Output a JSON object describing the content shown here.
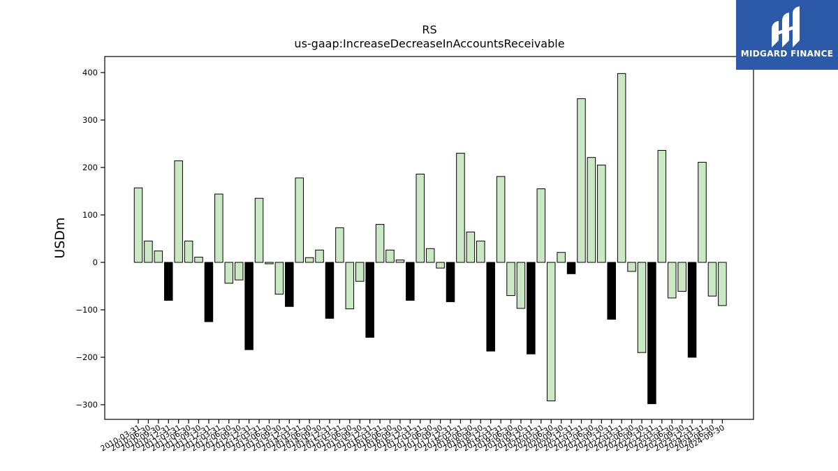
{
  "brand": {
    "name": "MIDGARD FINANCE"
  },
  "chart_data": {
    "type": "bar",
    "title": "RS",
    "subtitle": "us-gaap:IncreaseDecreaseInAccountsReceivable",
    "ylabel": "USDm",
    "xlabel": "",
    "ylim": [
      -330,
      435
    ],
    "yticks": [
      400,
      300,
      200,
      100,
      0,
      -100,
      -200,
      -300
    ],
    "ytick_labels": [
      "400",
      "300",
      "200",
      "100",
      "0",
      "−100",
      "−200",
      "−300"
    ],
    "grid": false,
    "colors": {
      "quarter": "#cbe8c4",
      "annual": "#000000",
      "edge": "#000000"
    },
    "categories": [
      "2010-03-31",
      "2010-06-30",
      "2010-09-30",
      "2010-12-31",
      "2011-03-31",
      "2011-06-30",
      "2011-09-30",
      "2011-12-31",
      "2012-03-31",
      "2012-06-30",
      "2012-09-30",
      "2012-12-31",
      "2013-03-31",
      "2013-06-30",
      "2013-09-30",
      "2013-12-31",
      "2014-03-31",
      "2014-06-30",
      "2014-09-30",
      "2014-12-31",
      "2015-03-31",
      "2015-06-30",
      "2015-09-30",
      "2015-12-31",
      "2016-03-31",
      "2016-06-30",
      "2016-09-30",
      "2016-12-31",
      "2017-03-31",
      "2017-06-30",
      "2017-09-30",
      "2017-12-31",
      "2018-03-31",
      "2018-06-30",
      "2018-09-30",
      "2018-12-31",
      "2019-03-31",
      "2019-06-30",
      "2019-09-30",
      "2019-12-31",
      "2020-03-31",
      "2020-06-30",
      "2020-09-30",
      "2020-12-31",
      "2021-03-31",
      "2021-06-30",
      "2021-09-30",
      "2021-12-31",
      "2022-03-31",
      "2022-06-30",
      "2022-09-30",
      "2022-12-31",
      "2023-03-31",
      "2023-06-30",
      "2023-09-30",
      "2023-12-31",
      "2024-03-31",
      "2024-06-30",
      "2024-09-30"
    ],
    "values": [
      157,
      45,
      24,
      -80,
      214,
      45,
      11,
      -125,
      144,
      -44,
      -37,
      -184,
      135,
      -3,
      -67,
      -93,
      178,
      10,
      26,
      -118,
      73,
      -98,
      -40,
      -158,
      80,
      26,
      5,
      -80,
      186,
      29,
      -12,
      -83,
      230,
      64,
      45,
      -187,
      181,
      -70,
      -97,
      -193,
      155,
      -292,
      21,
      -24,
      345,
      221,
      205,
      -120,
      398,
      -19,
      -190,
      -298,
      236,
      -75,
      -61,
      -200,
      211,
      -71,
      -91
    ],
    "annual": [
      false,
      false,
      false,
      true,
      false,
      false,
      false,
      true,
      false,
      false,
      false,
      true,
      false,
      false,
      false,
      true,
      false,
      false,
      false,
      true,
      false,
      false,
      false,
      true,
      false,
      false,
      false,
      true,
      false,
      false,
      false,
      true,
      false,
      false,
      false,
      true,
      false,
      false,
      false,
      true,
      false,
      false,
      false,
      true,
      false,
      false,
      false,
      true,
      false,
      false,
      false,
      true,
      false,
      false,
      false,
      true,
      false,
      false,
      false
    ]
  }
}
